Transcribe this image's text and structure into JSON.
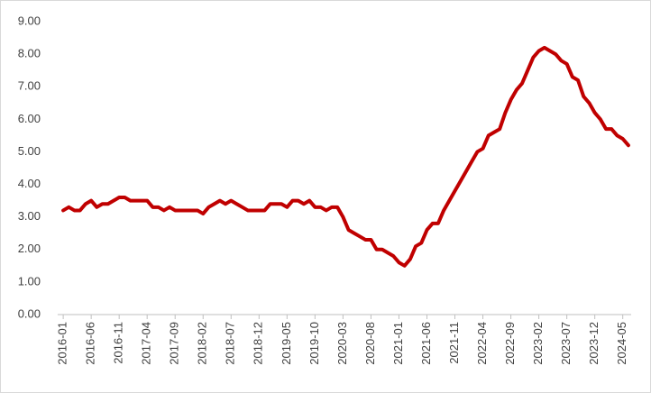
{
  "chart_data": {
    "type": "line",
    "categories": [
      "2016-01",
      null,
      null,
      null,
      null,
      "2016-06",
      null,
      null,
      null,
      null,
      "2016-11",
      null,
      null,
      null,
      null,
      "2017-04",
      null,
      null,
      null,
      null,
      "2017-09",
      null,
      null,
      null,
      null,
      "2018-02",
      null,
      null,
      null,
      null,
      "2018-07",
      null,
      null,
      null,
      null,
      "2018-12",
      null,
      null,
      null,
      null,
      "2019-05",
      null,
      null,
      null,
      null,
      "2019-10",
      null,
      null,
      null,
      null,
      "2020-03",
      null,
      null,
      null,
      null,
      "2020-08",
      null,
      null,
      null,
      null,
      "2021-01",
      null,
      null,
      null,
      null,
      "2021-06",
      null,
      null,
      null,
      null,
      "2021-11",
      null,
      null,
      null,
      null,
      "2022-04",
      null,
      null,
      null,
      null,
      "2022-09",
      null,
      null,
      null,
      null,
      "2023-02",
      null,
      null,
      null,
      null,
      "2023-07",
      null,
      null,
      null,
      null,
      "2023-12",
      null,
      null,
      null,
      null,
      "2024-05",
      null
    ],
    "values": [
      3.2,
      3.3,
      3.2,
      3.2,
      3.4,
      3.5,
      3.3,
      3.4,
      3.4,
      3.5,
      3.6,
      3.6,
      3.5,
      3.5,
      3.5,
      3.5,
      3.3,
      3.3,
      3.2,
      3.3,
      3.2,
      3.2,
      3.2,
      3.2,
      3.2,
      3.1,
      3.3,
      3.4,
      3.5,
      3.4,
      3.5,
      3.4,
      3.3,
      3.2,
      3.2,
      3.2,
      3.2,
      3.4,
      3.4,
      3.4,
      3.3,
      3.5,
      3.5,
      3.4,
      3.5,
      3.3,
      3.3,
      3.2,
      3.3,
      3.3,
      3.0,
      2.6,
      2.5,
      2.4,
      2.3,
      2.3,
      2.0,
      2.0,
      1.9,
      1.8,
      1.6,
      1.5,
      1.7,
      2.1,
      2.2,
      2.6,
      2.8,
      2.8,
      3.2,
      3.5,
      3.8,
      4.1,
      4.4,
      4.7,
      5.0,
      5.1,
      5.5,
      5.6,
      5.7,
      6.2,
      6.6,
      6.9,
      7.1,
      7.5,
      7.9,
      8.1,
      8.2,
      8.1,
      8.0,
      7.8,
      7.7,
      7.3,
      7.2,
      6.7,
      6.5,
      6.2,
      6.0,
      5.7,
      5.7,
      5.5,
      5.4,
      5.2
    ],
    "color": "#c00000",
    "ylim": [
      0,
      9
    ],
    "yticks": [
      {
        "value": 0,
        "label": "0.00"
      },
      {
        "value": 1,
        "label": "1.00"
      },
      {
        "value": 2,
        "label": "2.00"
      },
      {
        "value": 3,
        "label": "3.00"
      },
      {
        "value": 4,
        "label": "4.00"
      },
      {
        "value": 5,
        "label": "5.00"
      },
      {
        "value": 6,
        "label": "6.00"
      },
      {
        "value": 7,
        "label": "7.00"
      },
      {
        "value": 8,
        "label": "8.00"
      },
      {
        "value": 9,
        "label": "9.00"
      }
    ],
    "grid": false
  }
}
